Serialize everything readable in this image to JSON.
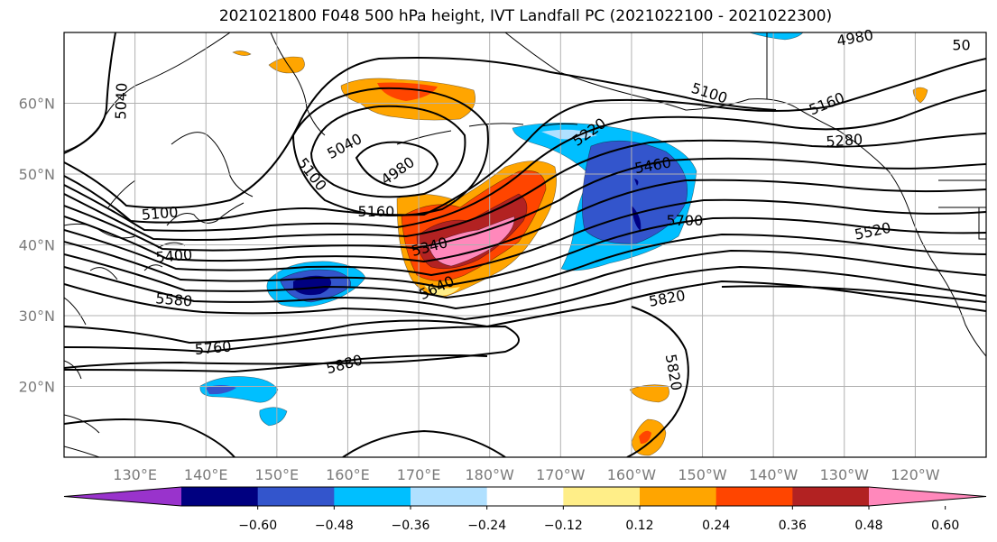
{
  "title": "2021021800 F048 500 hPa height, IVT Landfall PC (2021022100 - 2021022300)",
  "map": {
    "extent": {
      "lon_min": 120,
      "lon_max": 250,
      "lat_min": 10,
      "lat_max": 70
    },
    "lat_ticks": [
      {
        "lat": 60,
        "label": "60°N"
      },
      {
        "lat": 50,
        "label": "50°N"
      },
      {
        "lat": 40,
        "label": "40°N"
      },
      {
        "lat": 30,
        "label": "30°N"
      },
      {
        "lat": 20,
        "label": "20°N"
      }
    ],
    "lon_ticks": [
      {
        "lon": 130,
        "label": "130°E"
      },
      {
        "lon": 140,
        "label": "140°E"
      },
      {
        "lon": 150,
        "label": "150°E"
      },
      {
        "lon": 160,
        "label": "160°E"
      },
      {
        "lon": 170,
        "label": "170°E"
      },
      {
        "lon": 180,
        "label": "180°W"
      },
      {
        "lon": 190,
        "label": "170°W"
      },
      {
        "lon": 200,
        "label": "160°W"
      },
      {
        "lon": 210,
        "label": "150°W"
      },
      {
        "lon": 220,
        "label": "140°W"
      },
      {
        "lon": 230,
        "label": "130°W"
      },
      {
        "lon": 240,
        "label": "120°W"
      }
    ],
    "contour_labels": [
      {
        "text": "5040",
        "lon": 128.0,
        "lat": 60.3,
        "rot": -88
      },
      {
        "text": "5040",
        "lon": 159.5,
        "lat": 54.0,
        "rot": -28
      },
      {
        "text": "4980",
        "lon": 167.0,
        "lat": 50.5,
        "rot": -35
      },
      {
        "text": "5100",
        "lon": 155.0,
        "lat": 50.0,
        "rot": 52
      },
      {
        "text": "5100",
        "lon": 133.5,
        "lat": 44.5,
        "rot": -5
      },
      {
        "text": "5160",
        "lon": 164.0,
        "lat": 44.8,
        "rot": 0
      },
      {
        "text": "5220",
        "lon": 194.0,
        "lat": 56.0,
        "rot": -35
      },
      {
        "text": "5100",
        "lon": 211.0,
        "lat": 61.5,
        "rot": 18
      },
      {
        "text": "5160",
        "lon": 227.5,
        "lat": 60.0,
        "rot": -22
      },
      {
        "text": "5280",
        "lon": 230.0,
        "lat": 54.8,
        "rot": -4
      },
      {
        "text": "5460",
        "lon": 203.0,
        "lat": 51.3,
        "rot": -10
      },
      {
        "text": "5700",
        "lon": 207.5,
        "lat": 43.5,
        "rot": 0
      },
      {
        "text": "5520",
        "lon": 234.0,
        "lat": 42.0,
        "rot": -12
      },
      {
        "text": "5400",
        "lon": 135.5,
        "lat": 38.5,
        "rot": -5
      },
      {
        "text": "5340",
        "lon": 171.5,
        "lat": 39.8,
        "rot": -15
      },
      {
        "text": "5640",
        "lon": 172.5,
        "lat": 34.0,
        "rot": -25
      },
      {
        "text": "5580",
        "lon": 135.5,
        "lat": 32.3,
        "rot": 5
      },
      {
        "text": "5820",
        "lon": 205.0,
        "lat": 32.5,
        "rot": -10
      },
      {
        "text": "5760",
        "lon": 141.0,
        "lat": 25.5,
        "rot": -5
      },
      {
        "text": "5880",
        "lon": 159.5,
        "lat": 23.2,
        "rot": -15
      },
      {
        "text": "5820",
        "lon": 206.0,
        "lat": 22.0,
        "rot": 80
      },
      {
        "text": "4980",
        "lon": 231.5,
        "lat": 69.3,
        "rot": -10
      },
      {
        "text": "50",
        "lon": 246.5,
        "lat": 68.3,
        "rot": 0
      }
    ]
  },
  "colorbar": {
    "ticks": [
      "−0.60",
      "−0.48",
      "−0.36",
      "−0.24",
      "−0.12",
      "0.12",
      "0.24",
      "0.36",
      "0.48",
      "0.60"
    ],
    "segments": [
      "#9933cc",
      "#000080",
      "#3355cc",
      "#00bfff",
      "#b0e0ff",
      "#ffffff",
      "#ffee88",
      "#ffa500",
      "#ff4500",
      "#b22222",
      "#ff88bb"
    ]
  },
  "colors": {
    "purple": "#9933cc",
    "navy": "#000080",
    "blue": "#3355cc",
    "sky": "#00bfff",
    "light_blue": "#b0e0ff",
    "yellow": "#ffee88",
    "orange": "#ffa500",
    "red_orange": "#ff4500",
    "dark_red": "#b22222",
    "pink": "#ff88bb",
    "gridline": "#b0b0b0"
  }
}
